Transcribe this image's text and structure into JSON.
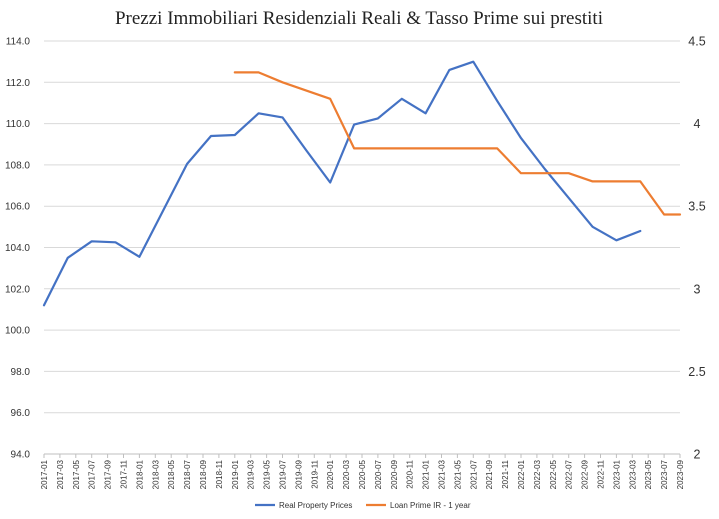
{
  "chart_data": {
    "type": "line",
    "title": "Prezzi Immobiliari Residenziali Reali & Tasso Prime sui prestiti",
    "x": [
      "2017-01",
      "2017-03",
      "2017-05",
      "2017-07",
      "2017-09",
      "2017-11",
      "2018-01",
      "2018-03",
      "2018-05",
      "2018-07",
      "2018-09",
      "2018-11",
      "2019-01",
      "2019-03",
      "2019-05",
      "2019-07",
      "2019-09",
      "2019-11",
      "2020-01",
      "2020-03",
      "2020-05",
      "2020-07",
      "2020-09",
      "2020-11",
      "2021-01",
      "2021-03",
      "2021-05",
      "2021-07",
      "2021-09",
      "2021-11",
      "2022-01",
      "2022-03",
      "2022-05",
      "2022-07",
      "2022-09",
      "2022-11",
      "2023-01",
      "2023-03",
      "2023-05",
      "2023-07",
      "2023-09"
    ],
    "y_left_ticks": [
      "94.0",
      "96.0",
      "98.0",
      "100.0",
      "102.0",
      "104.0",
      "106.0",
      "108.0",
      "110.0",
      "112.0",
      "114.0"
    ],
    "y_left_range": [
      94,
      114
    ],
    "y_right_ticks": [
      "2",
      "2.5",
      "3",
      "3.5",
      "4",
      "4.5"
    ],
    "y_right_range": [
      2,
      4.5
    ],
    "grid": "horizontal",
    "legend_position": "bottom",
    "series": [
      {
        "name": "Real Property Prices",
        "axis": "left",
        "color": "#4472C4",
        "points": [
          {
            "x": "2017-01",
            "y": 101.2
          },
          {
            "x": "2017-04",
            "y": 103.5
          },
          {
            "x": "2017-07",
            "y": 104.3
          },
          {
            "x": "2017-10",
            "y": 104.25
          },
          {
            "x": "2018-01",
            "y": 103.55
          },
          {
            "x": "2018-04",
            "y": 105.8
          },
          {
            "x": "2018-07",
            "y": 108.05
          },
          {
            "x": "2018-10",
            "y": 109.4
          },
          {
            "x": "2019-01",
            "y": 109.45
          },
          {
            "x": "2019-04",
            "y": 110.5
          },
          {
            "x": "2019-07",
            "y": 110.3
          },
          {
            "x": "2019-10",
            "y": 108.7
          },
          {
            "x": "2020-01",
            "y": 107.15
          },
          {
            "x": "2020-04",
            "y": 109.95
          },
          {
            "x": "2020-07",
            "y": 110.25
          },
          {
            "x": "2020-10",
            "y": 111.2
          },
          {
            "x": "2021-01",
            "y": 110.5
          },
          {
            "x": "2021-04",
            "y": 112.6
          },
          {
            "x": "2021-07",
            "y": 113.0
          },
          {
            "x": "2021-10",
            "y": 111.1
          },
          {
            "x": "2022-01",
            "y": 109.3
          },
          {
            "x": "2022-04",
            "y": 107.8
          },
          {
            "x": "2022-07",
            "y": 106.4
          },
          {
            "x": "2022-10",
            "y": 105.0
          },
          {
            "x": "2023-01",
            "y": 104.35
          },
          {
            "x": "2023-04",
            "y": 104.8
          }
        ]
      },
      {
        "name": "Loan Prime IR - 1 year",
        "axis": "right",
        "color": "#ED7D31",
        "points": [
          {
            "x": "2019-01",
            "y": 4.31
          },
          {
            "x": "2019-04",
            "y": 4.31
          },
          {
            "x": "2019-07",
            "y": 4.25
          },
          {
            "x": "2019-10",
            "y": 4.2
          },
          {
            "x": "2020-01",
            "y": 4.15
          },
          {
            "x": "2020-04",
            "y": 3.85
          },
          {
            "x": "2020-07",
            "y": 3.85
          },
          {
            "x": "2020-10",
            "y": 3.85
          },
          {
            "x": "2021-01",
            "y": 3.85
          },
          {
            "x": "2021-04",
            "y": 3.85
          },
          {
            "x": "2021-07",
            "y": 3.85
          },
          {
            "x": "2021-10",
            "y": 3.85
          },
          {
            "x": "2022-01",
            "y": 3.7
          },
          {
            "x": "2022-04",
            "y": 3.7
          },
          {
            "x": "2022-07",
            "y": 3.7
          },
          {
            "x": "2022-10",
            "y": 3.65
          },
          {
            "x": "2023-01",
            "y": 3.65
          },
          {
            "x": "2023-04",
            "y": 3.65
          },
          {
            "x": "2023-07",
            "y": 3.45
          },
          {
            "x": "2023-09",
            "y": 3.45
          }
        ]
      }
    ]
  }
}
